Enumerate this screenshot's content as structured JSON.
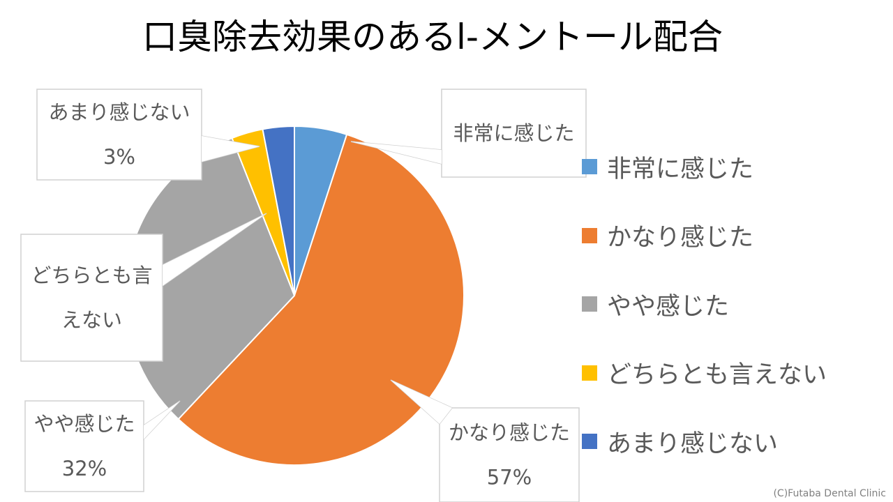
{
  "chart_data": {
    "type": "pie",
    "title": "口臭除去効果のあるl-メントール配合",
    "categories": [
      "非常に感じた",
      "かなり感じた",
      "やや感じた",
      "どちらとも言えない",
      "あまり感じない"
    ],
    "values": [
      5,
      57,
      32,
      3,
      3
    ],
    "colors": [
      "#5B9BD5",
      "#ED7D31",
      "#A5A5A5",
      "#FFC000",
      "#4472C4"
    ],
    "data_labels": [
      {
        "lines": [
          "非常に感じた"
        ]
      },
      {
        "lines": [
          "かなり感じた",
          "57%"
        ]
      },
      {
        "lines": [
          "やや感じた",
          "32%"
        ]
      },
      {
        "lines": [
          "どちらとも言",
          "えない"
        ]
      },
      {
        "lines": [
          "あまり感じない",
          "3%"
        ]
      }
    ],
    "legend_position": "right"
  },
  "credit": "(C)Futaba Dental Clinic"
}
